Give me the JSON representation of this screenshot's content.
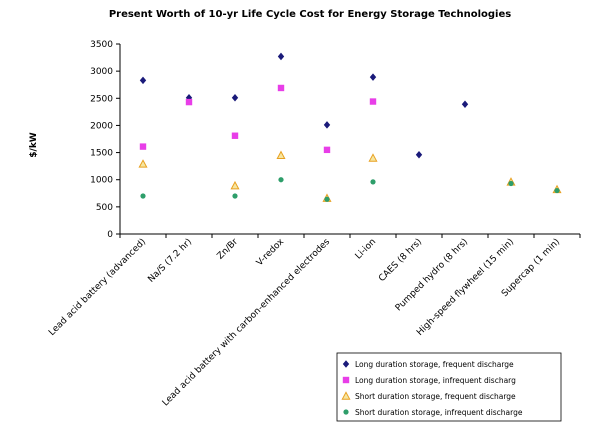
{
  "chart_data": {
    "type": "scatter",
    "title": "Present Worth of 10-yr Life Cycle Cost for Energy Storage Technologies",
    "ylabel": "$/kW",
    "xlabel": "",
    "ylim": [
      0,
      3500
    ],
    "yticks": [
      0,
      500,
      1000,
      1500,
      2000,
      2500,
      3000,
      3500
    ],
    "grid": false,
    "legend_position": "bottom-right",
    "categories": [
      "Lead acid battery (advanced)",
      "Na/S (7.2 hr)",
      "Zn/Br",
      "V-redox",
      "Lead acid battery with carbon-enhanced electrodes",
      "Li-ion",
      "CAES (8 hrs)",
      "Pumped hydro (8 hrs)",
      "High-speed flywheel (15 min)",
      "Supercap (1 min)"
    ],
    "series": [
      {
        "name": "Long duration storage, frequent discharge",
        "marker": "diamond",
        "color": "#1a1a7a",
        "values": [
          2830,
          2510,
          2510,
          3270,
          2010,
          2890,
          1460,
          2390,
          null,
          null
        ]
      },
      {
        "name": "Long duration storage, infrequent discharg",
        "marker": "square",
        "color": "#e83ee8",
        "values": [
          1610,
          2430,
          1810,
          2690,
          1550,
          2440,
          null,
          null,
          null,
          null
        ]
      },
      {
        "name": "Short duration storage, frequent discharge",
        "marker": "triangle",
        "color": "#e8a020",
        "values": [
          1290,
          null,
          890,
          1450,
          660,
          1400,
          null,
          null,
          960,
          820
        ]
      },
      {
        "name": "Short duration storage, infrequent discharge",
        "marker": "circle",
        "color": "#2e9e6a",
        "values": [
          700,
          null,
          700,
          1000,
          640,
          960,
          null,
          null,
          930,
          800
        ]
      }
    ]
  }
}
